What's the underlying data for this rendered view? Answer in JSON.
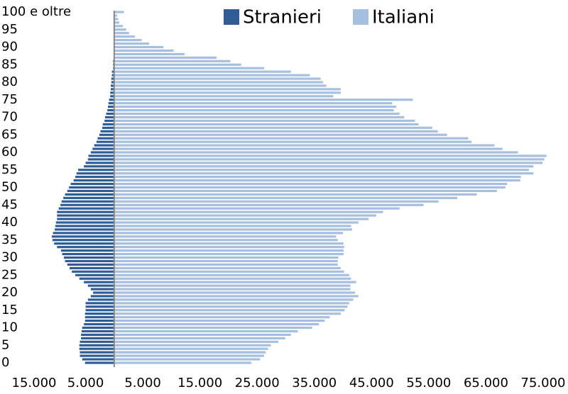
{
  "chart_data": {
    "type": "pyramid",
    "orientation": "horizontal",
    "legend": "top",
    "categories": [
      "0",
      null,
      null,
      null,
      null,
      "5",
      null,
      null,
      null,
      null,
      "10",
      null,
      null,
      null,
      null,
      "15",
      null,
      null,
      null,
      null,
      "20",
      null,
      null,
      null,
      null,
      "25",
      null,
      null,
      null,
      null,
      "30",
      null,
      null,
      null,
      null,
      "35",
      null,
      null,
      null,
      null,
      "40",
      null,
      null,
      null,
      null,
      "45",
      null,
      null,
      null,
      null,
      "50",
      null,
      null,
      null,
      null,
      "55",
      null,
      null,
      null,
      null,
      "60",
      null,
      null,
      null,
      null,
      "65",
      null,
      null,
      null,
      null,
      "70",
      null,
      null,
      null,
      null,
      "75",
      null,
      null,
      null,
      null,
      "80",
      null,
      null,
      null,
      null,
      "85",
      null,
      null,
      null,
      null,
      "90",
      null,
      null,
      null,
      null,
      "95",
      null,
      null,
      null,
      null,
      "100 e oltre"
    ],
    "series": [
      {
        "name": "Stranieri",
        "color": "#2f5c95",
        "values": [
          -5100,
          -5600,
          -6000,
          -6000,
          -6100,
          -6100,
          -6000,
          -5800,
          -5800,
          -5700,
          -5600,
          -5300,
          -5100,
          -5100,
          -5100,
          -5000,
          -5000,
          -5000,
          -4600,
          -4100,
          -3700,
          -4100,
          -4600,
          -5300,
          -6100,
          -6800,
          -7400,
          -7800,
          -8200,
          -8600,
          -8800,
          -9100,
          -9300,
          -10000,
          -10500,
          -10800,
          -10900,
          -10700,
          -10400,
          -10300,
          -10200,
          -10000,
          -10000,
          -10000,
          -9700,
          -9400,
          -9200,
          -8900,
          -8600,
          -8200,
          -7900,
          -7600,
          -7100,
          -6800,
          -6600,
          -6300,
          -5300,
          -5000,
          -4600,
          -4500,
          -4100,
          -3800,
          -3500,
          -3100,
          -2900,
          -2600,
          -2400,
          -2100,
          -2000,
          -1700,
          -1600,
          -1400,
          -1200,
          -1100,
          -1000,
          -900,
          -700,
          -700,
          -600,
          -600,
          -500,
          -500,
          -400,
          -400,
          -200,
          -200,
          -200,
          -100,
          -100,
          -100,
          -100,
          -100,
          -100,
          -100,
          -100,
          -100,
          -50,
          -50,
          -50,
          -50,
          -50
        ]
      },
      {
        "name": "Italiani",
        "color": "#a6bfdf",
        "values": [
          24000,
          25500,
          26200,
          26500,
          26900,
          27400,
          28700,
          29900,
          30900,
          32100,
          34600,
          35800,
          36800,
          37700,
          39600,
          40300,
          40800,
          41100,
          41800,
          42700,
          42100,
          41300,
          41300,
          42300,
          41400,
          41100,
          40200,
          39600,
          39100,
          39100,
          39200,
          40100,
          40100,
          40200,
          40100,
          39100,
          38800,
          40000,
          41600,
          41400,
          42700,
          44500,
          45800,
          47000,
          49900,
          54100,
          56700,
          60000,
          63400,
          66900,
          68400,
          68700,
          71000,
          71100,
          73300,
          72500,
          73300,
          74900,
          75200,
          75600,
          70600,
          67900,
          66500,
          62500,
          61900,
          58200,
          56600,
          55600,
          53200,
          52600,
          50700,
          49900,
          48900,
          49300,
          48600,
          52200,
          38300,
          39600,
          39600,
          37100,
          36500,
          36100,
          34200,
          30900,
          26200,
          22200,
          20300,
          17900,
          12300,
          10400,
          8600,
          6100,
          4800,
          3600,
          2600,
          2100,
          1500,
          900,
          700,
          500,
          1700
        ]
      }
    ],
    "xlim": [
      -15000,
      75000
    ],
    "xticks": [
      {
        "value": -15000,
        "label": "15.000"
      },
      {
        "value": -5000,
        "label": "5.000"
      },
      {
        "value": 5000,
        "label": "5.000"
      },
      {
        "value": 15000,
        "label": "15.000"
      },
      {
        "value": 25000,
        "label": "25.000"
      },
      {
        "value": 35000,
        "label": "35.000"
      },
      {
        "value": 45000,
        "label": "45.000"
      },
      {
        "value": 55000,
        "label": "55.000"
      },
      {
        "value": 65000,
        "label": "65.000"
      },
      {
        "value": 75000,
        "label": "75.000"
      }
    ],
    "grid": false
  }
}
